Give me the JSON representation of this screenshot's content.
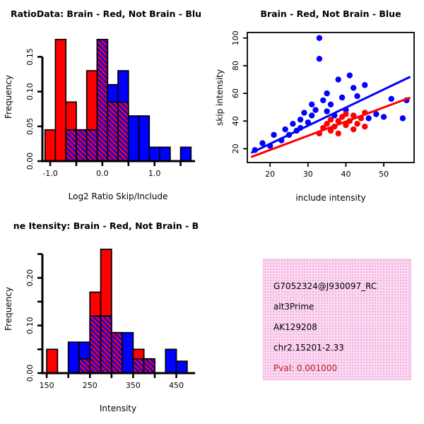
{
  "page": {
    "background": "#ffffff"
  },
  "chart_data": [
    {
      "id": "ratio-histogram",
      "type": "bar",
      "title": "RatioData: Brain - Red, Not Brain - Blu",
      "xlabel": "Log2 Ratio Skip/Include",
      "ylabel": "Frequency",
      "bin_start": -1.1,
      "bin_width": 0.2,
      "xlim": [
        -1.15,
        1.75
      ],
      "ylim": [
        0,
        0.185
      ],
      "xticks": [
        -1.0,
        -0.5,
        0.0,
        0.5,
        1.0,
        1.5
      ],
      "xtick_labels": [
        "-1.0",
        "",
        "0.0",
        "",
        "1.0",
        ""
      ],
      "yticks": [
        0.0,
        0.05,
        0.1,
        0.15
      ],
      "ytick_labels": [
        "0.00",
        "0.05",
        "0.10",
        "0.15"
      ],
      "series": [
        {
          "name": "Brain",
          "color": "#FF0000",
          "values": [
            0.045,
            0.175,
            0.085,
            0.045,
            0.13,
            0.175,
            0.085,
            0.085,
            0,
            0,
            0,
            0,
            0,
            0
          ]
        },
        {
          "name": "Not Brain",
          "color": "#0000FF",
          "values": [
            0,
            0,
            0.045,
            0.045,
            0.045,
            0.175,
            0.11,
            0.13,
            0.065,
            0.065,
            0.02,
            0.02,
            0,
            0.02
          ]
        }
      ]
    },
    {
      "id": "intensity-scatter",
      "type": "scatter",
      "title": "Brain - Red, Not Brain - Blue",
      "xlabel": "include intensity",
      "ylabel": "skip intensity",
      "xlim": [
        14,
        58
      ],
      "ylim": [
        10,
        104
      ],
      "xticks": [
        20,
        30,
        40,
        50
      ],
      "xtick_labels": [
        "20",
        "30",
        "40",
        "50"
      ],
      "yticks": [
        20,
        40,
        60,
        80,
        100
      ],
      "ytick_labels": [
        "20",
        "40",
        "60",
        "80",
        "100"
      ],
      "series": [
        {
          "name": "Not Brain",
          "color": "#0000FF",
          "points": [
            [
              16,
              19
            ],
            [
              18,
              24
            ],
            [
              20,
              22
            ],
            [
              21,
              30
            ],
            [
              23,
              26
            ],
            [
              24,
              34
            ],
            [
              25,
              30
            ],
            [
              26,
              38
            ],
            [
              27,
              33
            ],
            [
              28,
              41
            ],
            [
              28,
              35
            ],
            [
              29,
              46
            ],
            [
              30,
              39
            ],
            [
              31,
              52
            ],
            [
              31,
              44
            ],
            [
              32,
              48
            ],
            [
              33,
              100
            ],
            [
              33,
              85
            ],
            [
              34,
              55
            ],
            [
              35,
              47
            ],
            [
              35,
              60
            ],
            [
              36,
              52
            ],
            [
              37,
              44
            ],
            [
              38,
              70
            ],
            [
              39,
              57
            ],
            [
              40,
              48
            ],
            [
              41,
              73
            ],
            [
              42,
              64
            ],
            [
              43,
              58
            ],
            [
              45,
              66
            ],
            [
              46,
              42
            ],
            [
              48,
              45
            ],
            [
              50,
              43
            ],
            [
              52,
              56
            ],
            [
              55,
              42
            ],
            [
              56,
              55
            ]
          ]
        },
        {
          "name": "Brain",
          "color": "#FF0000",
          "points": [
            [
              33,
              31
            ],
            [
              34,
              35
            ],
            [
              35,
              38
            ],
            [
              36,
              33
            ],
            [
              36,
              41
            ],
            [
              37,
              36
            ],
            [
              38,
              40
            ],
            [
              38,
              31
            ],
            [
              39,
              43
            ],
            [
              40,
              37
            ],
            [
              40,
              45
            ],
            [
              41,
              40
            ],
            [
              42,
              34
            ],
            [
              42,
              44
            ],
            [
              43,
              38
            ],
            [
              44,
              42
            ],
            [
              45,
              36
            ],
            [
              45,
              46
            ]
          ]
        }
      ],
      "fit_lines": [
        {
          "name": "not-brain-fit",
          "color": "#0000FF",
          "from": [
            15,
            17
          ],
          "to": [
            57,
            72
          ]
        },
        {
          "name": "brain-fit",
          "color": "#FF0000",
          "from": [
            15,
            14
          ],
          "to": [
            57,
            57
          ]
        }
      ]
    },
    {
      "id": "gene-intensity-histogram",
      "type": "bar",
      "title": "ne Itensity: Brain - Red, Not Brain - B",
      "xlabel": "Intensity",
      "ylabel": "Frequency",
      "bin_start": 150,
      "bin_width": 25,
      "xlim": [
        140,
        490
      ],
      "ylim": [
        0,
        0.27
      ],
      "xticks": [
        150,
        200,
        250,
        300,
        350,
        400,
        450
      ],
      "xtick_labels": [
        "150",
        "",
        "250",
        "",
        "350",
        "",
        "450"
      ],
      "yticks": [
        0.0,
        0.05,
        0.1,
        0.15,
        0.2,
        0.25
      ],
      "ytick_labels": [
        "0.00",
        "",
        "0.10",
        "",
        "0.20",
        ""
      ],
      "series": [
        {
          "name": "Brain",
          "color": "#FF0000",
          "values": [
            0.05,
            0,
            0,
            0.03,
            0.17,
            0.26,
            0.085,
            0,
            0.05,
            0.03,
            0,
            0,
            0
          ]
        },
        {
          "name": "Not Brain",
          "color": "#0000FF",
          "values": [
            0,
            0,
            0.065,
            0.065,
            0.12,
            0.12,
            0.085,
            0.085,
            0.03,
            0.03,
            0,
            0.05,
            0.025
          ]
        }
      ]
    }
  ],
  "info_box": {
    "lines": [
      "G7052324@J930097_RC",
      "alt3Prime",
      "AK129208",
      "chr2.15201-2.33"
    ],
    "pval": "Pval: 0.001000",
    "background": "#fbd9f1",
    "pval_color": "#b22222",
    "text_color": "#000000"
  }
}
